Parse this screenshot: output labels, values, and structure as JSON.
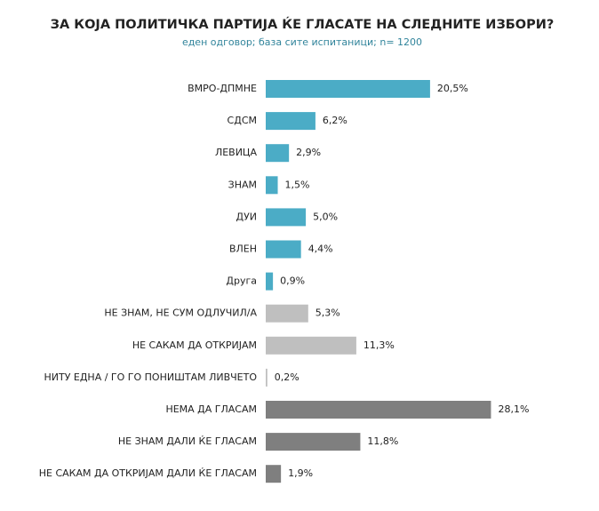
{
  "chart_data": {
    "type": "hbar",
    "title": "ЗА КОЈА ПОЛИТИЧКА ПАРТИЈА ЌЕ ГЛАСАТЕ НА СЛЕДНИТЕ ИЗБОРИ?",
    "subtitle": "еден одговор; база сите испитаници; n= 1200",
    "categories": [
      "ВМРО-ДПМНЕ",
      "СДСМ",
      "ЛЕВИЦА",
      "ЗНАМ",
      "ДУИ",
      "ВЛЕН",
      "Друга",
      "НЕ ЗНАМ, НЕ СУМ ОДЛУЧИЛ/А",
      "НЕ САКАМ ДА ОТКРИЈАМ",
      "НИТУ ЕДНА / ГО ГО ПОНИШТАМ ЛИВЧЕТО",
      "НЕМА ДА ГЛАСАМ",
      "НЕ ЗНАМ ДАЛИ ЌЕ ГЛАСАМ",
      "НЕ САКАМ ДА ОТКРИЈАМ ДАЛИ ЌЕ ГЛАСАМ"
    ],
    "values": [
      20.5,
      6.2,
      2.9,
      1.5,
      5.0,
      4.4,
      0.9,
      5.3,
      11.3,
      0.2,
      28.1,
      11.8,
      1.9
    ],
    "value_labels": [
      "20,5%",
      "6,2%",
      "2,9%",
      "1,5%",
      "5,0%",
      "4,4%",
      "0,9%",
      "5,3%",
      "11,3%",
      "0,2%",
      "28,1%",
      "11,8%",
      "1,9%"
    ],
    "colors": [
      "#4bacc6",
      "#4bacc6",
      "#4bacc6",
      "#4bacc6",
      "#4bacc6",
      "#4bacc6",
      "#4bacc6",
      "#bfbfbf",
      "#bfbfbf",
      "#bfbfbf",
      "#7f7f7f",
      "#7f7f7f",
      "#7f7f7f"
    ]
  }
}
